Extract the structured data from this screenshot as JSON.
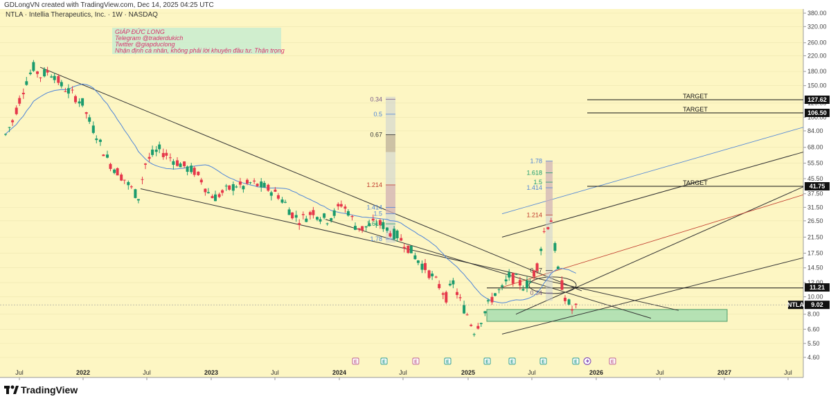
{
  "header": {
    "created_by": "GDLongVN created with TradingView.com, Dec 14, 2025 04:25 UTC",
    "symbol_line": "NTLA · Intellia Therapeutics, Inc. · 1W · NASDAQ"
  },
  "footer": {
    "brand": "TradingView"
  },
  "colors": {
    "background": "#fdf6c3",
    "bull": "#1b9b6d",
    "bear": "#e5374a",
    "ma": "#4d84d8",
    "zone": "#a9dfb2"
  },
  "annotations": {
    "note_lines": [
      "GIÁP ĐỨC LONG",
      "Telegram @traderdukich",
      "Twitter @giapduclong",
      "Nhận định cá nhân, không phải lời khuyên đầu tư. Thận trọng"
    ],
    "targets": [
      {
        "label": "TARGET",
        "price": "127.62"
      },
      {
        "label": "TARGET",
        "price": "106.50"
      },
      {
        "label": "TARGET",
        "price": "41.75"
      }
    ],
    "fib_left": [
      "0.34",
      "0.5",
      "0.67",
      "1.214",
      "1.414",
      "1.5",
      "1.618",
      "1.78"
    ],
    "fib_right": [
      "1.78",
      "1.618",
      "1.5",
      "1.414",
      "1.214",
      "0.67",
      "0.34"
    ]
  },
  "chart_data": {
    "type": "candlestick",
    "title": "NTLA · Intellia Therapeutics, Inc. · 1W · NASDAQ",
    "scale": "log",
    "y_ticks": [
      380,
      320,
      260,
      220,
      180,
      150,
      120,
      100,
      84,
      68,
      55.5,
      45.5,
      37.5,
      31.5,
      26.5,
      21.5,
      17.5,
      14.5,
      12,
      10,
      8,
      6.6,
      5.5,
      4.6
    ],
    "y_tick_labels": [
      "380.00",
      "320.00",
      "260.00",
      "220.00",
      "180.00",
      "150.00",
      "120.00",
      "100.00",
      "84.00",
      "68.00",
      "55.50",
      "45.50",
      "37.50",
      "31.50",
      "26.50",
      "21.50",
      "17.50",
      "14.50",
      "12.00",
      "10.00",
      "8.00",
      "6.60",
      "5.50",
      "4.60"
    ],
    "x_ticks": [
      {
        "label": "Jul",
        "bold": false
      },
      {
        "label": "2022",
        "bold": true
      },
      {
        "label": "Jul",
        "bold": false
      },
      {
        "label": "2023",
        "bold": true
      },
      {
        "label": "Jul",
        "bold": false
      },
      {
        "label": "2024",
        "bold": true
      },
      {
        "label": "Jul",
        "bold": false
      },
      {
        "label": "2025",
        "bold": true
      },
      {
        "label": "Jul",
        "bold": false
      },
      {
        "label": "2026",
        "bold": true
      },
      {
        "label": "Jul",
        "bold": false
      },
      {
        "label": "2027",
        "bold": true
      },
      {
        "label": "Jul",
        "bold": false
      }
    ],
    "last_price": "9.02",
    "marked_levels": [
      {
        "label": "127.62",
        "value": 127.62
      },
      {
        "label": "106.50",
        "value": 106.5
      },
      {
        "label": "41.75",
        "value": 41.75
      },
      {
        "label": "11.21",
        "value": 11.21
      }
    ],
    "demand_zone": [
      7.3,
      8.5
    ],
    "price_path": [
      [
        0,
        80
      ],
      [
        1,
        95
      ],
      [
        2,
        125
      ],
      [
        3,
        160
      ],
      [
        4,
        190
      ],
      [
        5,
        170
      ],
      [
        6,
        180
      ],
      [
        7,
        172
      ],
      [
        8,
        150
      ],
      [
        9,
        140
      ],
      [
        10,
        130
      ],
      [
        11,
        120
      ],
      [
        12,
        95
      ],
      [
        13,
        80
      ],
      [
        14,
        65
      ],
      [
        15,
        55
      ],
      [
        16,
        50
      ],
      [
        17,
        45
      ],
      [
        18,
        40
      ],
      [
        19,
        36
      ],
      [
        20,
        55
      ],
      [
        21,
        62
      ],
      [
        22,
        66
      ],
      [
        23,
        62
      ],
      [
        24,
        58
      ],
      [
        25,
        55
      ],
      [
        26,
        52
      ],
      [
        27,
        50
      ],
      [
        28,
        45
      ],
      [
        29,
        38
      ],
      [
        30,
        36
      ],
      [
        31,
        38
      ],
      [
        32,
        40
      ],
      [
        33,
        42
      ],
      [
        34,
        41
      ],
      [
        35,
        43
      ],
      [
        36,
        42
      ],
      [
        37,
        41
      ],
      [
        38,
        39
      ],
      [
        39,
        37
      ],
      [
        40,
        33
      ],
      [
        41,
        29
      ],
      [
        42,
        27
      ],
      [
        43,
        28
      ],
      [
        44,
        30
      ],
      [
        45,
        28
      ],
      [
        46,
        27
      ],
      [
        47,
        29
      ],
      [
        48,
        33
      ],
      [
        49,
        30
      ],
      [
        50,
        25
      ],
      [
        51,
        24
      ],
      [
        52,
        25
      ],
      [
        53,
        26
      ],
      [
        54,
        25
      ],
      [
        55,
        23
      ],
      [
        56,
        22
      ],
      [
        57,
        20
      ],
      [
        58,
        18
      ],
      [
        59,
        16
      ],
      [
        60,
        14.5
      ],
      [
        61,
        13
      ],
      [
        62,
        11.5
      ],
      [
        63,
        10
      ],
      [
        64,
        12
      ],
      [
        65,
        9.5
      ],
      [
        66,
        8
      ],
      [
        67,
        6.5
      ],
      [
        68,
        7.5
      ],
      [
        69,
        9
      ],
      [
        70,
        10.5
      ],
      [
        71,
        11
      ],
      [
        72,
        13
      ],
      [
        73,
        12.5
      ],
      [
        74,
        11.5
      ],
      [
        75,
        12
      ],
      [
        76,
        15
      ],
      [
        77,
        23
      ],
      [
        78,
        27
      ],
      [
        79,
        14
      ],
      [
        80,
        10
      ],
      [
        81,
        8.5
      ],
      [
        82,
        9.02
      ]
    ]
  }
}
